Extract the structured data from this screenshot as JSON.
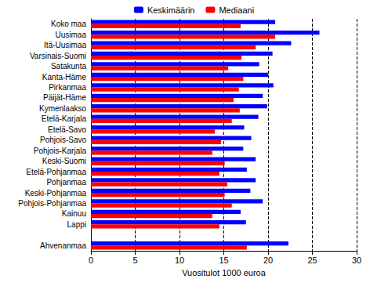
{
  "chart_data": {
    "type": "bar",
    "orientation": "horizontal",
    "x_label": "Vuositulot 1000 euroa",
    "categories": [
      "Koko maa",
      "Uusimaa",
      "Itä-Uusimaa",
      "Varsinais-Suomi",
      "Satakunta",
      "Kanta-Häme",
      "Pirkanmaa",
      "Päijät-Häme",
      "Kymenlaakso",
      "Etelä-Karjala",
      "Etelä-Savo",
      "Pohjois-Savo",
      "Pohjois-Karjala",
      "Keski-Suomi",
      "Etelä-Pohjanmaa",
      "Pohjanmaa",
      "Keski-Pohjanmaa",
      "Pohjois-Pohjanmaa",
      "Kainuu",
      "Lappi",
      null,
      "Ahvenanmaa"
    ],
    "series": [
      {
        "name": "Keskimäärin",
        "color": "#0000ff",
        "values": [
          20.8,
          25.8,
          22.6,
          20.5,
          19.0,
          20.0,
          20.6,
          19.4,
          19.9,
          18.9,
          17.3,
          18.1,
          17.2,
          18.6,
          17.6,
          18.6,
          18.0,
          19.4,
          16.9,
          17.5,
          null,
          22.3
        ]
      },
      {
        "name": "Mediaani",
        "color": "#ff0000",
        "values": [
          16.9,
          20.8,
          18.6,
          17.0,
          15.5,
          17.2,
          16.7,
          16.1,
          16.8,
          15.9,
          14.0,
          14.7,
          13.7,
          15.1,
          14.5,
          15.4,
          15.1,
          15.9,
          13.7,
          14.5,
          null,
          17.6
        ]
      }
    ],
    "xlim": [
      0,
      30
    ],
    "xticks": [
      0,
      5,
      10,
      15,
      20,
      25,
      30
    ],
    "grid": true,
    "legend": "top"
  }
}
